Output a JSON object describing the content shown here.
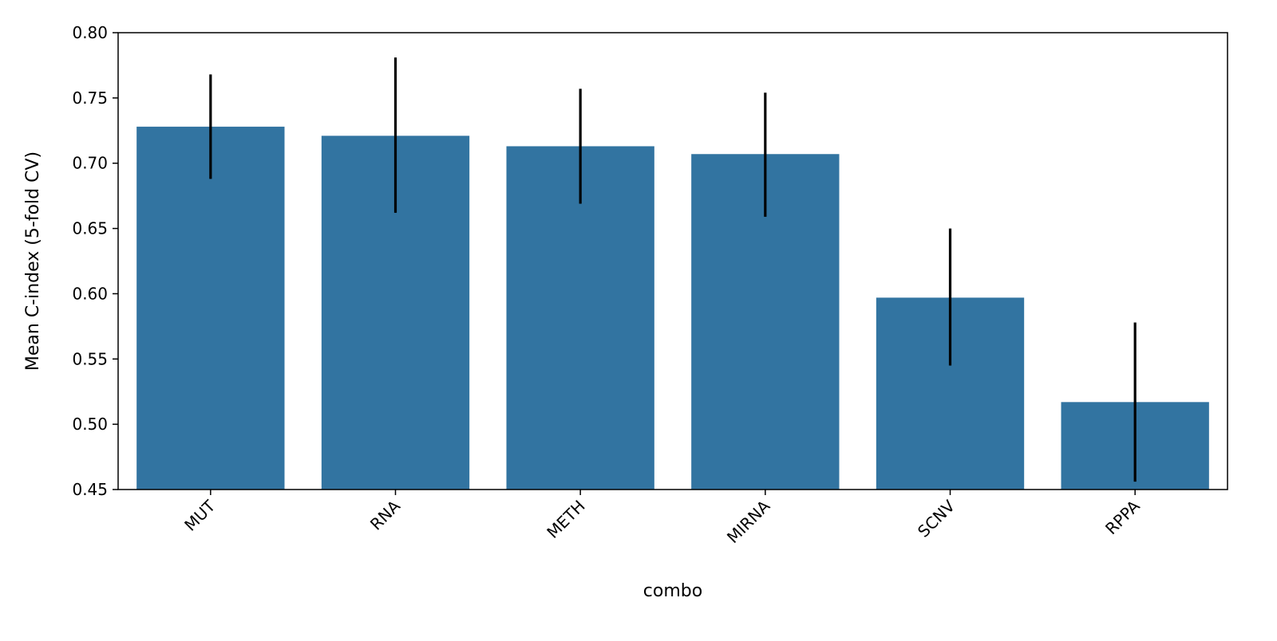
{
  "chart_data": {
    "type": "bar",
    "title": "",
    "xlabel": "combo",
    "ylabel": "Mean C-index (5-fold CV)",
    "categories": [
      "MUT",
      "RNA",
      "METH",
      "MIRNA",
      "SCNV",
      "RPPA"
    ],
    "values": [
      0.728,
      0.721,
      0.713,
      0.707,
      0.597,
      0.517
    ],
    "error_low": [
      0.688,
      0.662,
      0.669,
      0.659,
      0.545,
      0.456
    ],
    "error_high": [
      0.768,
      0.781,
      0.757,
      0.754,
      0.65,
      0.578
    ],
    "ylim": [
      0.45,
      0.8
    ],
    "yticks": [
      "0.45",
      "0.50",
      "0.55",
      "0.60",
      "0.65",
      "0.70",
      "0.75",
      "0.80"
    ],
    "grid": false,
    "legend": "none",
    "colors": {
      "bar": "#3274a1",
      "error_bar": "#000000",
      "axis": "#000000"
    }
  }
}
